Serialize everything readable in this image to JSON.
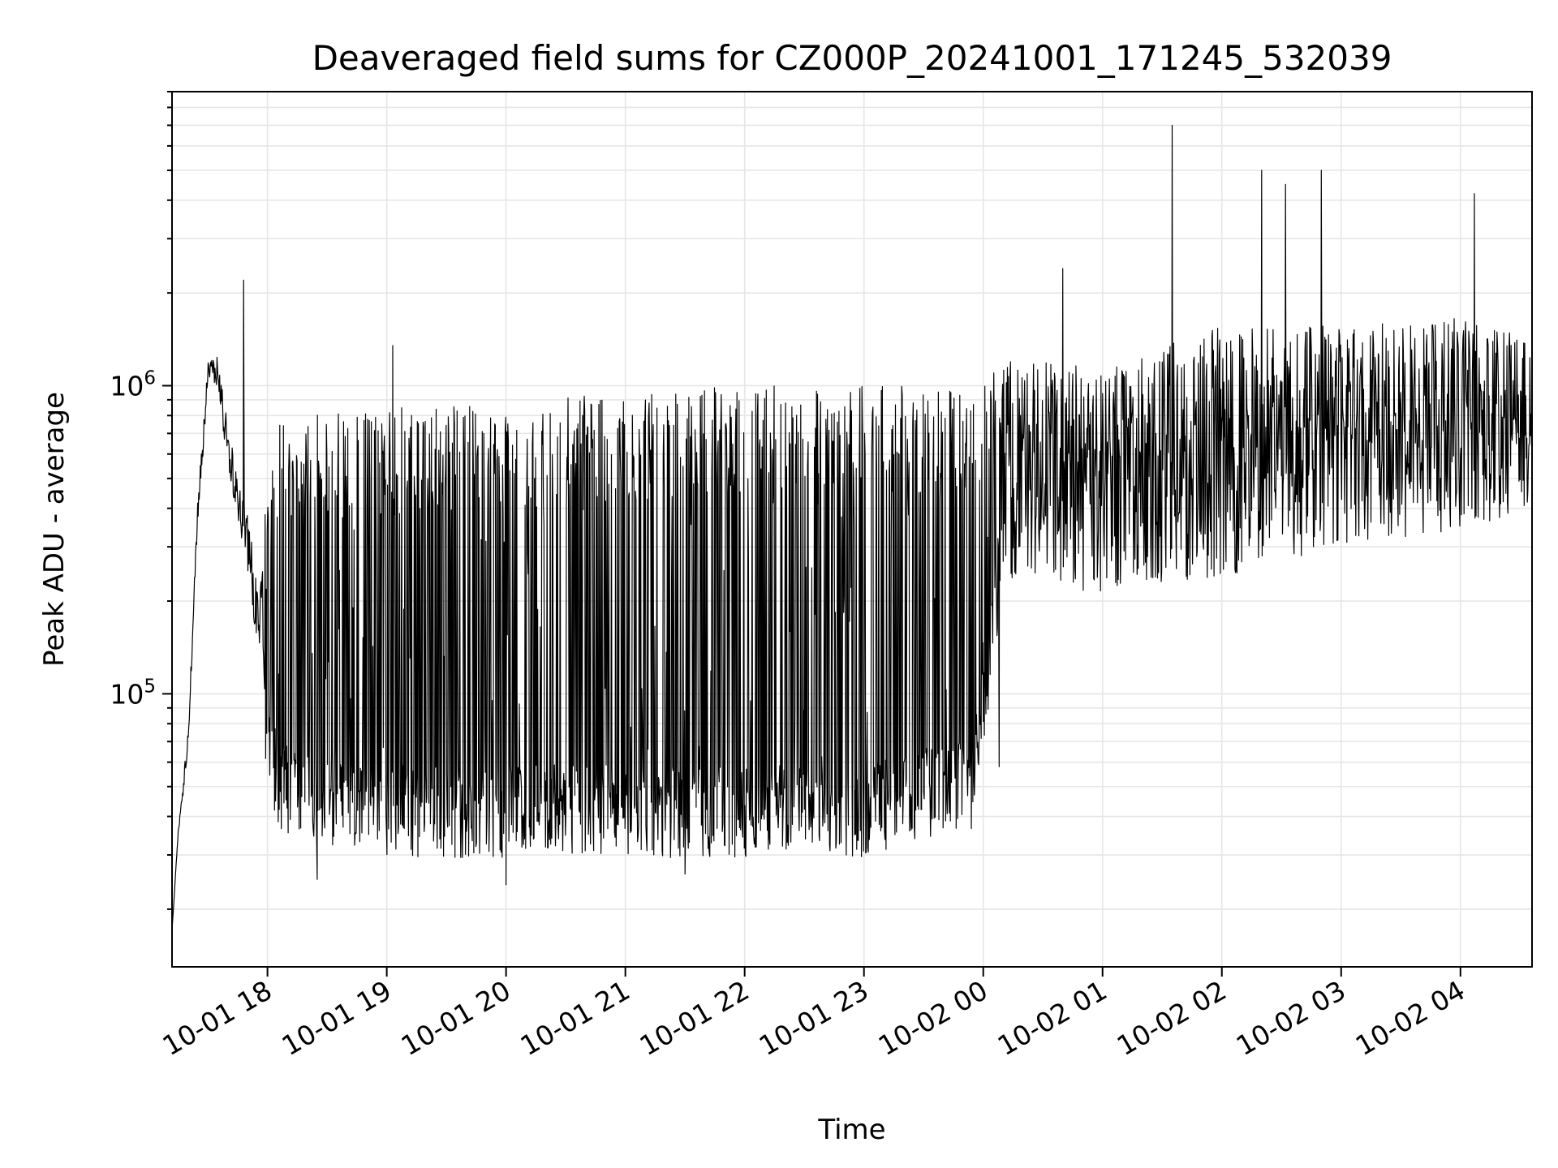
{
  "chart_data": {
    "type": "line",
    "title": "Deaveraged field sums for CZ000P_20241001_171245_532039",
    "xlabel": "Time",
    "ylabel": "Peak ADU - average",
    "yscale": "log",
    "ylim": [
      13000,
      9000000
    ],
    "xlim": [
      "2024-10-01 17:12",
      "2024-10-02 04:36"
    ],
    "grid": true,
    "grid_minor": true,
    "legend": "none",
    "line_color": "#000000",
    "x_ticks": [
      {
        "value": "2024-10-01 18:00",
        "label": "10-01 18"
      },
      {
        "value": "2024-10-01 19:00",
        "label": "10-01 19"
      },
      {
        "value": "2024-10-01 20:00",
        "label": "10-01 20"
      },
      {
        "value": "2024-10-01 21:00",
        "label": "10-01 21"
      },
      {
        "value": "2024-10-01 22:00",
        "label": "10-01 22"
      },
      {
        "value": "2024-10-01 23:00",
        "label": "10-01 23"
      },
      {
        "value": "2024-10-02 00:00",
        "label": "10-02 00"
      },
      {
        "value": "2024-10-02 01:00",
        "label": "10-02 01"
      },
      {
        "value": "2024-10-02 02:00",
        "label": "10-02 02"
      },
      {
        "value": "2024-10-02 03:00",
        "label": "10-02 03"
      },
      {
        "value": "2024-10-02 04:00",
        "label": "10-02 04"
      }
    ],
    "y_ticks": [
      {
        "value": 100000,
        "base": "10",
        "exp": "5"
      },
      {
        "value": 1000000,
        "base": "10",
        "exp": "6"
      }
    ],
    "series": [
      {
        "values_profile": [
          {
            "t": "2024-10-01 17:12",
            "low": 17000,
            "high": 17000
          },
          {
            "t": "2024-10-01 17:15",
            "low": 32000,
            "high": 38000
          },
          {
            "t": "2024-10-01 17:20",
            "low": 60000,
            "high": 80000
          },
          {
            "t": "2024-10-01 17:25",
            "low": 300000,
            "high": 500000
          },
          {
            "t": "2024-10-01 17:30",
            "low": 900000,
            "high": 1300000
          },
          {
            "t": "2024-10-01 17:35",
            "low": 900000,
            "high": 1400000
          },
          {
            "t": "2024-10-01 17:40",
            "low": 450000,
            "high": 900000
          },
          {
            "t": "2024-10-01 17:45",
            "low": 300000,
            "high": 600000
          },
          {
            "t": "2024-10-01 17:50",
            "low": 200000,
            "high": 500000
          },
          {
            "t": "2024-10-01 17:55",
            "low": 100000,
            "high": 300000
          },
          {
            "t": "2024-10-01 18:05",
            "low": 40000,
            "high": 800000
          },
          {
            "t": "2024-10-01 19:00",
            "low": 33000,
            "high": 850000
          },
          {
            "t": "2024-10-01 20:00",
            "low": 33000,
            "high": 880000
          },
          {
            "t": "2024-10-01 21:00",
            "low": 33000,
            "high": 950000
          },
          {
            "t": "2024-10-01 22:00",
            "low": 33000,
            "high": 1000000
          },
          {
            "t": "2024-10-01 23:00",
            "low": 33000,
            "high": 1000000
          },
          {
            "t": "2024-10-01 23:55",
            "low": 40000,
            "high": 1000000
          },
          {
            "t": "2024-10-02 00:10",
            "low": 250000,
            "high": 1200000
          },
          {
            "t": "2024-10-02 01:00",
            "low": 220000,
            "high": 1100000
          },
          {
            "t": "2024-10-02 02:00",
            "low": 250000,
            "high": 1500000
          },
          {
            "t": "2024-10-02 03:00",
            "low": 300000,
            "high": 1500000
          },
          {
            "t": "2024-10-02 04:00",
            "low": 350000,
            "high": 1600000
          },
          {
            "t": "2024-10-02 04:36",
            "low": 400000,
            "high": 1400000
          }
        ],
        "peaks": [
          {
            "t": "2024-10-01 17:48",
            "value": 2200000
          },
          {
            "t": "2024-10-01 19:03",
            "value": 1350000
          },
          {
            "t": "2024-10-02 00:40",
            "value": 2400000
          },
          {
            "t": "2024-10-02 01:35",
            "value": 7000000
          },
          {
            "t": "2024-10-02 02:20",
            "value": 5000000
          },
          {
            "t": "2024-10-02 02:32",
            "value": 4500000
          },
          {
            "t": "2024-10-02 02:50",
            "value": 5000000
          },
          {
            "t": "2024-10-02 04:07",
            "value": 4200000
          }
        ],
        "dips": [
          {
            "t": "2024-10-01 18:25",
            "value": 25000
          },
          {
            "t": "2024-10-01 20:00",
            "value": 24000
          },
          {
            "t": "2024-10-01 21:30",
            "value": 26000
          },
          {
            "t": "2024-10-02 00:08",
            "value": 58000
          }
        ]
      }
    ]
  }
}
